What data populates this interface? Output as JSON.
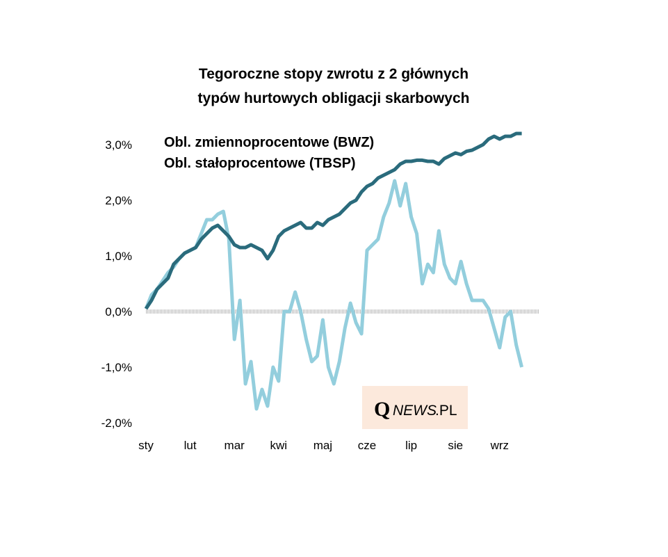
{
  "chart_data": {
    "type": "line",
    "title": [
      "Tegoroczne stopy zwrotu z 2 głównych",
      "typów hurtowych obligacji skarbowych"
    ],
    "categories": [
      "sty",
      null,
      null,
      null,
      null,
      null,
      null,
      null,
      "lut",
      null,
      null,
      null,
      null,
      null,
      null,
      null,
      "mar",
      null,
      null,
      null,
      null,
      null,
      null,
      null,
      "kwi",
      null,
      null,
      null,
      null,
      null,
      null,
      null,
      "maj",
      null,
      null,
      null,
      null,
      null,
      null,
      null,
      "cze",
      null,
      null,
      null,
      null,
      null,
      null,
      null,
      "lip",
      null,
      null,
      null,
      null,
      null,
      null,
      null,
      "sie",
      null,
      null,
      null,
      null,
      null,
      null,
      null,
      "wrz",
      null,
      null,
      null,
      null
    ],
    "series": [
      {
        "name": "Obl. zmiennoprocentowe (BWZ)",
        "color": "#2a6b7c",
        "values": [
          0.05,
          0.2,
          0.4,
          0.5,
          0.6,
          0.85,
          0.95,
          1.05,
          1.1,
          1.15,
          1.3,
          1.4,
          1.5,
          1.55,
          1.45,
          1.35,
          1.2,
          1.15,
          1.15,
          1.2,
          1.15,
          1.1,
          0.95,
          1.1,
          1.35,
          1.45,
          1.5,
          1.55,
          1.6,
          1.5,
          1.5,
          1.6,
          1.55,
          1.65,
          1.7,
          1.75,
          1.85,
          1.95,
          2.0,
          2.15,
          2.25,
          2.3,
          2.4,
          2.45,
          2.5,
          2.55,
          2.65,
          2.7,
          2.7,
          2.72,
          2.72,
          2.7,
          2.7,
          2.65,
          2.75,
          2.8,
          2.85,
          2.82,
          2.88,
          2.9,
          2.95,
          3.0,
          3.1,
          3.15,
          3.1,
          3.15,
          3.15,
          3.2,
          3.2
        ]
      },
      {
        "name": "Obl. stałoprocentowe (TBSP)",
        "color": "#93cedd",
        "values": [
          0.05,
          0.3,
          0.4,
          0.55,
          0.7,
          0.8,
          0.95,
          1.05,
          1.1,
          1.15,
          1.4,
          1.65,
          1.65,
          1.75,
          1.8,
          1.3,
          -0.5,
          0.2,
          -1.3,
          -0.9,
          -1.75,
          -1.4,
          -1.7,
          -1.0,
          -1.25,
          0.0,
          0.0,
          0.35,
          0.0,
          -0.5,
          -0.9,
          -0.8,
          -0.15,
          -1.0,
          -1.3,
          -0.9,
          -0.3,
          0.15,
          -0.2,
          -0.4,
          1.1,
          1.2,
          1.3,
          1.7,
          1.95,
          2.35,
          1.9,
          2.3,
          1.7,
          1.4,
          0.5,
          0.85,
          0.7,
          1.45,
          0.85,
          0.6,
          0.5,
          0.9,
          0.5,
          0.2,
          0.2,
          0.2,
          0.05,
          -0.3,
          -0.65,
          -0.1,
          0.0,
          -0.6,
          -1.0
        ]
      }
    ],
    "ylim": [
      -2,
      3.3
    ],
    "yticks": [
      {
        "value": -2,
        "label": "-2,0%"
      },
      {
        "value": -1,
        "label": "-1,0%"
      },
      {
        "value": 0,
        "label": "0,0%"
      },
      {
        "value": 1,
        "label": "1,0%"
      },
      {
        "value": 2,
        "label": "2,0%"
      },
      {
        "value": 3,
        "label": "3,0%"
      }
    ],
    "watermark": [
      "Q",
      "NEWS",
      ".PL"
    ]
  }
}
